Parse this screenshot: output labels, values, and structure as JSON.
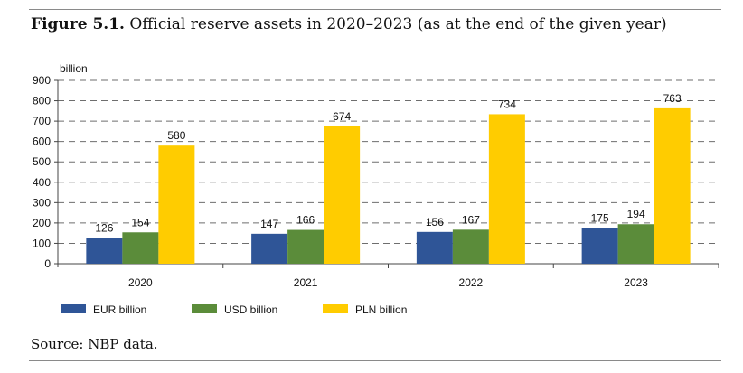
{
  "figure": {
    "label": "Figure 5.1.",
    "title": "Official reserve assets in 2020–2023 (as at the end of the given year)",
    "source": "Source: NBP data."
  },
  "chart_data": {
    "type": "bar",
    "title": "Official reserve assets in 2020–2023 (as at the end of the given year)",
    "ylabel": "billion",
    "xlabel": "",
    "ylim": [
      0,
      900
    ],
    "yticks": [
      0,
      100,
      200,
      300,
      400,
      500,
      600,
      700,
      800,
      900
    ],
    "grid": true,
    "legend_position": "bottom-left",
    "categories": [
      "2020",
      "2021",
      "2022",
      "2023"
    ],
    "series": [
      {
        "name": "EUR billion",
        "color": "#2f5597",
        "values": [
          126,
          147,
          156,
          175
        ]
      },
      {
        "name": "USD billion",
        "color": "#5b8c3a",
        "values": [
          154,
          166,
          167,
          194
        ]
      },
      {
        "name": "PLN billion",
        "color": "#ffcc00",
        "values": [
          580,
          674,
          734,
          763
        ]
      }
    ]
  }
}
